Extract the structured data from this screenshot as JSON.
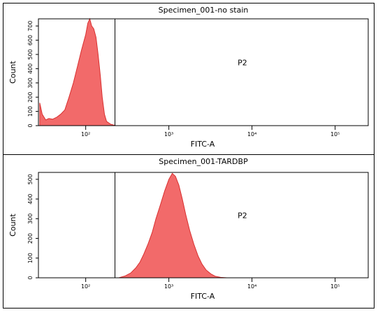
{
  "chart_data": [
    {
      "type": "area",
      "title": "Specimen_001-no stain",
      "x_label": "FITC-A",
      "y_label": "Count",
      "xscale": "log",
      "xlim": [
        27,
        250000
      ],
      "ylim": [
        0,
        750
      ],
      "xticks": [
        {
          "value": 100,
          "label": "10²"
        },
        {
          "value": 1000,
          "label": "10³"
        },
        {
          "value": 10000,
          "label": "10⁴"
        },
        {
          "value": 100000,
          "label": "10⁵"
        }
      ],
      "yticks": [
        0,
        100,
        200,
        300,
        400,
        500,
        600,
        700
      ],
      "color": "#f26a6a",
      "gate": {
        "label": "P2",
        "from": 225
      },
      "x": [
        28,
        30,
        33,
        36,
        40,
        45,
        50,
        56,
        63,
        71,
        80,
        89,
        100,
        106,
        112,
        118,
        125,
        133,
        141,
        150,
        158,
        168,
        178,
        200,
        230
      ],
      "values": [
        160,
        80,
        40,
        50,
        45,
        60,
        80,
        110,
        200,
        300,
        420,
        530,
        640,
        720,
        750,
        700,
        680,
        620,
        500,
        350,
        200,
        80,
        30,
        10,
        0
      ]
    },
    {
      "type": "area",
      "title": "Specimen_001-TARDBP",
      "x_label": "FITC-A",
      "y_label": "Count",
      "xscale": "log",
      "xlim": [
        27,
        250000
      ],
      "ylim": [
        0,
        535
      ],
      "xticks": [
        {
          "value": 100,
          "label": "10²"
        },
        {
          "value": 1000,
          "label": "10³"
        },
        {
          "value": 10000,
          "label": "10⁴"
        },
        {
          "value": 100000,
          "label": "10⁵"
        }
      ],
      "yticks": [
        0,
        100,
        200,
        300,
        400,
        500
      ],
      "color": "#f26a6a",
      "gate": {
        "label": "P2",
        "from": 225
      },
      "x": [
        250,
        300,
        350,
        400,
        450,
        500,
        560,
        630,
        700,
        790,
        890,
        1000,
        1100,
        1200,
        1320,
        1450,
        1600,
        1780,
        2000,
        2250,
        2500,
        2800,
        3200,
        3600,
        4200,
        5000
      ],
      "values": [
        0,
        10,
        25,
        50,
        80,
        120,
        170,
        230,
        300,
        370,
        440,
        500,
        530,
        515,
        470,
        400,
        320,
        240,
        170,
        110,
        70,
        40,
        20,
        8,
        2,
        0
      ]
    }
  ]
}
